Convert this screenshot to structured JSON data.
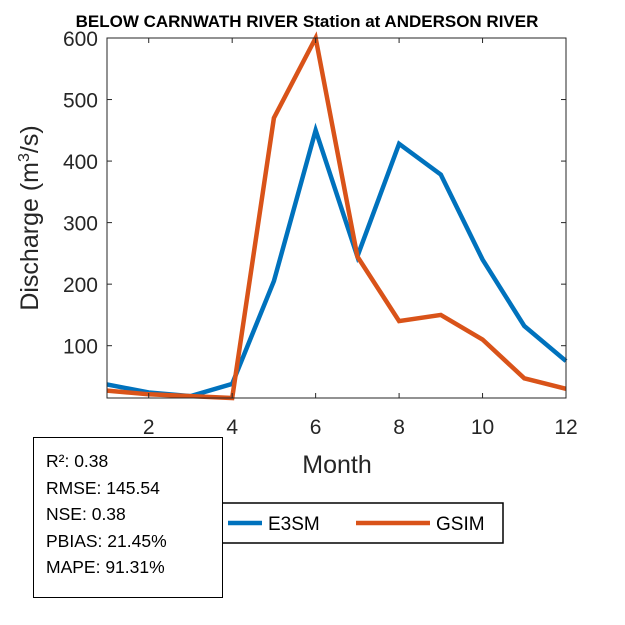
{
  "chart_data": {
    "type": "line",
    "title": "BELOW CARNWATH RIVER  Station at  ANDERSON RIVER",
    "xlabel": "Month",
    "ylabel_main": "Discharge (m",
    "ylabel_sup": "3",
    "ylabel_end": "/s)",
    "xlim": [
      1,
      12
    ],
    "ylim": [
      15,
      600
    ],
    "xticks": [
      2,
      4,
      6,
      8,
      10,
      12
    ],
    "yticks": [
      100,
      200,
      300,
      400,
      500,
      600
    ],
    "x": [
      1,
      2,
      3,
      4,
      5,
      6,
      7,
      8,
      9,
      10,
      11,
      12
    ],
    "series": [
      {
        "name": "E3SM",
        "color": "#0072BD",
        "values": [
          37,
          24,
          18,
          38,
          205,
          450,
          245,
          428,
          378,
          240,
          132,
          75
        ]
      },
      {
        "name": "GSIM",
        "color": "#D95319",
        "values": [
          27,
          21,
          18,
          15,
          470,
          600,
          245,
          140,
          150,
          110,
          47,
          30
        ]
      }
    ],
    "legend_position": "bottom-right (outside plot)",
    "grid": false
  },
  "stats": [
    "R²: 0.38",
    "RMSE: 145.54",
    "NSE: 0.38",
    "PBIAS: 21.45%",
    "MAPE: 91.31%"
  ]
}
